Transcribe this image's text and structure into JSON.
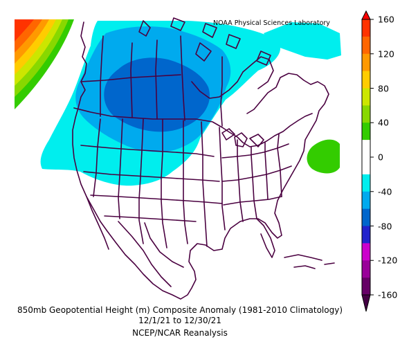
{
  "credit": "NOAA Physical Sciences Laboratory",
  "caption": {
    "line1": "850mb Geopotential Height (m) Composite Anomaly (1981-2010 Climatology)",
    "line2": "12/1/21  to 12/30/21",
    "line3": "NCEP/NCAR Reanalysis"
  },
  "colorbar": {
    "units": "m",
    "tick_labels": [
      "160",
      "120",
      "80",
      "40",
      "0",
      "-40",
      "-80",
      "-120",
      "-160"
    ],
    "bins": [
      {
        "range": "140 to 160",
        "color": "#ff3300"
      },
      {
        "range": "120 to 140",
        "color": "#ff6600"
      },
      {
        "range": "100 to 120",
        "color": "#ff9900"
      },
      {
        "range": "80 to 100",
        "color": "#ffcc00"
      },
      {
        "range": "60 to 80",
        "color": "#cce600"
      },
      {
        "range": "40 to 60",
        "color": "#88d800"
      },
      {
        "range": "20 to 40",
        "color": "#33cc00"
      },
      {
        "range": "0 to 20",
        "color": "#ffffff"
      },
      {
        "range": "-20 to 0",
        "color": "#ffffff"
      },
      {
        "range": "-40 to -20",
        "color": "#00eeee"
      },
      {
        "range": "-60 to -40",
        "color": "#00aaee"
      },
      {
        "range": "-80 to -60",
        "color": "#0066cc"
      },
      {
        "range": "-100 to -80",
        "color": "#2222cc"
      },
      {
        "range": "-120 to -100",
        "color": "#cc00cc"
      },
      {
        "range": "-140 to -120",
        "color": "#990099"
      },
      {
        "range": "-160 to -140",
        "color": "#660066"
      }
    ],
    "over_color": "#ff0000",
    "under_color": "#440044"
  },
  "map": {
    "region": "North America",
    "projection": "polar stereographic",
    "boundary_color": "#4a0040",
    "anomaly_features": [
      {
        "feature": "negative anomaly centered over western Canada",
        "level": "-80 to -60"
      },
      {
        "feature": "broad negative anomaly over western North America",
        "level": "-40 to -20"
      },
      {
        "feature": "positive anomaly over the northeast Pacific",
        "level": "above 140"
      },
      {
        "feature": "positive anomaly over the western Atlantic",
        "level": "20 to 40"
      }
    ]
  }
}
